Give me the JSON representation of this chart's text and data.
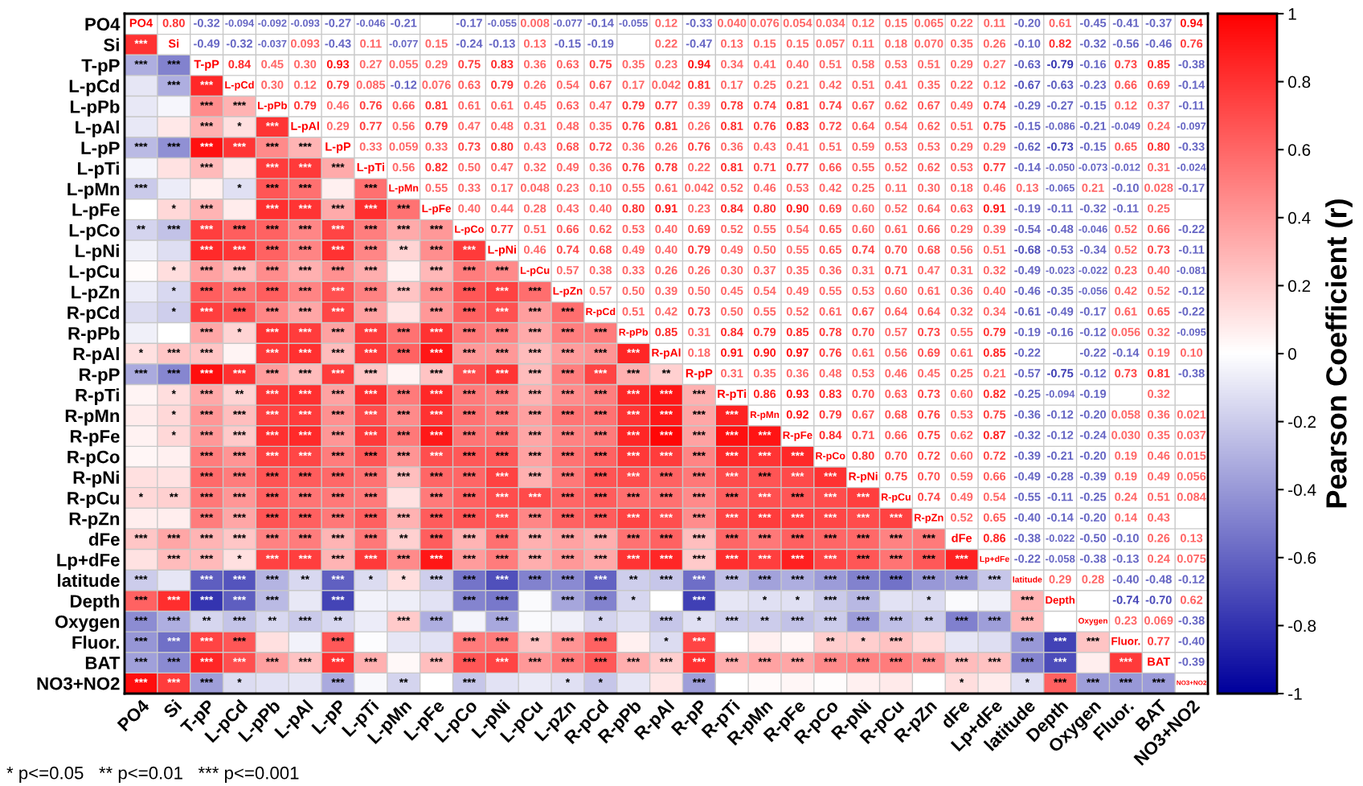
{
  "chart_data": {
    "type": "heatmap",
    "categories": [
      "PO4",
      "Si",
      "T-pP",
      "L-pCd",
      "L-pPb",
      "L-pAl",
      "L-pP",
      "L-pTi",
      "L-pMn",
      "L-pFe",
      "L-pCo",
      "L-pNi",
      "L-pCu",
      "L-pZn",
      "R-pCd",
      "R-pPb",
      "R-pAl",
      "R-pP",
      "R-pTi",
      "R-pMn",
      "R-pFe",
      "R-pCo",
      "R-pNi",
      "R-pCu",
      "R-pZn",
      "dFe",
      "Lp+dFe",
      "latitude",
      "Depth",
      "Oxygen",
      "Fluor.",
      "BAT",
      "NO3+NO2"
    ],
    "y_categories": [
      "PO4",
      "Si",
      "T-pP",
      "L-pCd",
      "L-pPb",
      "L-pAl",
      "L-pP",
      "L-pTi",
      "L-pMn",
      "L-pFe",
      "L-pCo",
      "L-pNi",
      "L-pCu",
      "L-pZn",
      "R-pCd",
      "R-pPb",
      "R-pAl",
      "R-pP",
      "R-pTi",
      "R-pMn",
      "R-pFe",
      "R-pCo",
      "R-pNi",
      "R-pCu",
      "R-pZn",
      "dFe",
      "Lp+dFe",
      "latitude",
      "Depth",
      "Oxygen",
      "Fluor.",
      "BAT",
      "NO3+NO2"
    ],
    "cells": [
      [
        null,
        null,
        null,
        null,
        null,
        null,
        null,
        null,
        null,
        null,
        null,
        null,
        null,
        null,
        null,
        null,
        null,
        null,
        null,
        null,
        null,
        null,
        null,
        null,
        null,
        null,
        null,
        null,
        null,
        null,
        null,
        null,
        null
      ],
      [
        0.8,
        null,
        null,
        null,
        null,
        null,
        null,
        null,
        null,
        null,
        null,
        null,
        null,
        null,
        null,
        null,
        null,
        null,
        null,
        null,
        null,
        null,
        null,
        null,
        null,
        null,
        null,
        null,
        null,
        null,
        null,
        null,
        null
      ],
      [
        -0.32,
        -0.49,
        null,
        null,
        null,
        null,
        null,
        null,
        null,
        null,
        null,
        null,
        null,
        null,
        null,
        null,
        null,
        null,
        null,
        null,
        null,
        null,
        null,
        null,
        null,
        null,
        null,
        null,
        null,
        null,
        null,
        null,
        null
      ],
      [
        -0.094,
        -0.32,
        0.84,
        null,
        null,
        null,
        null,
        null,
        null,
        null,
        null,
        null,
        null,
        null,
        null,
        null,
        null,
        null,
        null,
        null,
        null,
        null,
        null,
        null,
        null,
        null,
        null,
        null,
        null,
        null,
        null,
        null,
        null
      ],
      [
        -0.092,
        -0.037,
        0.45,
        0.3,
        null,
        null,
        null,
        null,
        null,
        null,
        null,
        null,
        null,
        null,
        null,
        null,
        null,
        null,
        null,
        null,
        null,
        null,
        null,
        null,
        null,
        null,
        null,
        null,
        null,
        null,
        null,
        null,
        null
      ],
      [
        -0.093,
        0.093,
        0.3,
        0.12,
        0.79,
        null,
        null,
        null,
        null,
        null,
        null,
        null,
        null,
        null,
        null,
        null,
        null,
        null,
        null,
        null,
        null,
        null,
        null,
        null,
        null,
        null,
        null,
        null,
        null,
        null,
        null,
        null,
        null
      ],
      [
        -0.27,
        -0.43,
        0.93,
        0.79,
        0.46,
        0.29,
        null,
        null,
        null,
        null,
        null,
        null,
        null,
        null,
        null,
        null,
        null,
        null,
        null,
        null,
        null,
        null,
        null,
        null,
        null,
        null,
        null,
        null,
        null,
        null,
        null,
        null,
        null
      ],
      [
        -0.046,
        0.11,
        0.27,
        0.085,
        0.76,
        0.77,
        0.33,
        null,
        null,
        null,
        null,
        null,
        null,
        null,
        null,
        null,
        null,
        null,
        null,
        null,
        null,
        null,
        null,
        null,
        null,
        null,
        null,
        null,
        null,
        null,
        null,
        null,
        null
      ],
      [
        -0.21,
        -0.077,
        0.055,
        -0.12,
        0.66,
        0.56,
        0.059,
        0.56,
        null,
        null,
        null,
        null,
        null,
        null,
        null,
        null,
        null,
        null,
        null,
        null,
        null,
        null,
        null,
        null,
        null,
        null,
        null,
        null,
        null,
        null,
        null,
        null,
        null
      ],
      [
        null,
        0.15,
        0.29,
        0.076,
        0.81,
        0.79,
        0.33,
        0.82,
        0.55,
        null,
        null,
        null,
        null,
        null,
        null,
        null,
        null,
        null,
        null,
        null,
        null,
        null,
        null,
        null,
        null,
        null,
        null,
        null,
        null,
        null,
        null,
        null,
        null
      ],
      [
        -0.17,
        -0.24,
        0.75,
        0.63,
        0.61,
        0.47,
        0.73,
        0.5,
        0.33,
        0.4,
        null,
        null,
        null,
        null,
        null,
        null,
        null,
        null,
        null,
        null,
        null,
        null,
        null,
        null,
        null,
        null,
        null,
        null,
        null,
        null,
        null,
        null,
        null
      ],
      [
        -0.055,
        -0.13,
        0.83,
        0.79,
        0.61,
        0.48,
        0.8,
        0.47,
        0.17,
        0.44,
        0.77,
        null,
        null,
        null,
        null,
        null,
        null,
        null,
        null,
        null,
        null,
        null,
        null,
        null,
        null,
        null,
        null,
        null,
        null,
        null,
        null,
        null,
        null
      ],
      [
        0.008,
        0.13,
        0.36,
        0.26,
        0.45,
        0.31,
        0.43,
        0.32,
        0.048,
        0.28,
        0.51,
        0.46,
        null,
        null,
        null,
        null,
        null,
        null,
        null,
        null,
        null,
        null,
        null,
        null,
        null,
        null,
        null,
        null,
        null,
        null,
        null,
        null,
        null
      ],
      [
        -0.077,
        -0.15,
        0.63,
        0.54,
        0.63,
        0.48,
        0.68,
        0.49,
        0.23,
        0.43,
        0.66,
        0.74,
        0.57,
        null,
        null,
        null,
        null,
        null,
        null,
        null,
        null,
        null,
        null,
        null,
        null,
        null,
        null,
        null,
        null,
        null,
        null,
        null,
        null
      ],
      [
        -0.14,
        -0.19,
        0.75,
        0.67,
        0.47,
        0.35,
        0.72,
        0.36,
        0.1,
        0.4,
        0.62,
        0.68,
        0.38,
        0.57,
        null,
        null,
        null,
        null,
        null,
        null,
        null,
        null,
        null,
        null,
        null,
        null,
        null,
        null,
        null,
        null,
        null,
        null,
        null
      ],
      [
        -0.055,
        null,
        0.35,
        0.17,
        0.79,
        0.76,
        0.36,
        0.76,
        0.55,
        0.8,
        0.53,
        0.49,
        0.33,
        0.5,
        0.51,
        null,
        null,
        null,
        null,
        null,
        null,
        null,
        null,
        null,
        null,
        null,
        null,
        null,
        null,
        null,
        null,
        null,
        null
      ],
      [
        0.12,
        0.22,
        0.23,
        0.042,
        0.77,
        0.81,
        0.26,
        0.78,
        0.61,
        0.91,
        0.4,
        0.4,
        0.26,
        0.39,
        0.42,
        0.85,
        null,
        null,
        null,
        null,
        null,
        null,
        null,
        null,
        null,
        null,
        null,
        null,
        null,
        null,
        null,
        null,
        null
      ],
      [
        -0.33,
        -0.47,
        0.94,
        0.81,
        0.39,
        0.26,
        0.76,
        0.22,
        0.042,
        0.23,
        0.69,
        0.79,
        0.26,
        0.5,
        0.73,
        0.31,
        0.18,
        null,
        null,
        null,
        null,
        null,
        null,
        null,
        null,
        null,
        null,
        null,
        null,
        null,
        null,
        null,
        null
      ],
      [
        0.04,
        0.13,
        0.34,
        0.17,
        0.78,
        0.81,
        0.36,
        0.81,
        0.52,
        0.84,
        0.52,
        0.49,
        0.3,
        0.45,
        0.5,
        0.84,
        0.91,
        0.31,
        null,
        null,
        null,
        null,
        null,
        null,
        null,
        null,
        null,
        null,
        null,
        null,
        null,
        null,
        null
      ],
      [
        0.076,
        0.15,
        0.41,
        0.25,
        0.74,
        0.76,
        0.43,
        0.71,
        0.46,
        0.8,
        0.55,
        0.5,
        0.37,
        0.54,
        0.55,
        0.79,
        0.9,
        0.35,
        0.86,
        null,
        null,
        null,
        null,
        null,
        null,
        null,
        null,
        null,
        null,
        null,
        null,
        null,
        null
      ],
      [
        0.054,
        0.15,
        0.4,
        0.21,
        0.81,
        0.83,
        0.41,
        0.77,
        0.53,
        0.9,
        0.54,
        0.55,
        0.35,
        0.49,
        0.52,
        0.85,
        0.97,
        0.36,
        0.93,
        0.92,
        null,
        null,
        null,
        null,
        null,
        null,
        null,
        null,
        null,
        null,
        null,
        null,
        null
      ],
      [
        0.034,
        0.057,
        0.51,
        0.42,
        0.74,
        0.72,
        0.51,
        0.66,
        0.42,
        0.69,
        0.65,
        0.65,
        0.36,
        0.55,
        0.61,
        0.78,
        0.76,
        0.48,
        0.83,
        0.79,
        0.84,
        null,
        null,
        null,
        null,
        null,
        null,
        null,
        null,
        null,
        null,
        null,
        null
      ],
      [
        0.12,
        0.11,
        0.58,
        0.51,
        0.67,
        0.64,
        0.59,
        0.55,
        0.25,
        0.6,
        0.6,
        0.74,
        0.31,
        0.53,
        0.67,
        0.7,
        0.61,
        0.53,
        0.7,
        0.67,
        0.71,
        0.8,
        null,
        null,
        null,
        null,
        null,
        null,
        null,
        null,
        null,
        null,
        null
      ],
      [
        0.15,
        0.18,
        0.53,
        0.41,
        0.62,
        0.54,
        0.53,
        0.52,
        0.11,
        0.52,
        0.61,
        0.7,
        0.71,
        0.6,
        0.64,
        0.57,
        0.56,
        0.46,
        0.63,
        0.68,
        0.66,
        0.7,
        0.75,
        null,
        null,
        null,
        null,
        null,
        null,
        null,
        null,
        null,
        null
      ],
      [
        0.065,
        0.07,
        0.51,
        0.35,
        0.67,
        0.62,
        0.53,
        0.62,
        0.3,
        0.64,
        0.66,
        0.68,
        0.47,
        0.61,
        0.64,
        0.73,
        0.69,
        0.45,
        0.73,
        0.76,
        0.75,
        0.72,
        0.7,
        0.74,
        null,
        null,
        null,
        null,
        null,
        null,
        null,
        null,
        null
      ],
      [
        0.22,
        0.35,
        0.29,
        0.22,
        0.49,
        0.51,
        0.29,
        0.53,
        0.18,
        0.63,
        0.29,
        0.56,
        0.31,
        0.36,
        0.32,
        0.55,
        0.61,
        0.25,
        0.6,
        0.53,
        0.62,
        0.6,
        0.59,
        0.49,
        0.52,
        null,
        null,
        null,
        null,
        null,
        null,
        null,
        null
      ],
      [
        0.11,
        0.26,
        0.27,
        0.12,
        0.74,
        0.75,
        0.29,
        0.77,
        0.46,
        0.91,
        0.39,
        0.51,
        0.32,
        0.4,
        0.34,
        0.79,
        0.85,
        0.21,
        0.82,
        0.75,
        0.87,
        0.72,
        0.66,
        0.54,
        0.65,
        0.86,
        null,
        null,
        null,
        null,
        null,
        null,
        null
      ],
      [
        -0.2,
        -0.1,
        -0.63,
        -0.67,
        -0.29,
        -0.15,
        -0.62,
        -0.14,
        0.13,
        -0.19,
        -0.54,
        -0.68,
        -0.49,
        -0.46,
        -0.61,
        -0.19,
        -0.22,
        -0.57,
        -0.25,
        -0.36,
        -0.32,
        -0.39,
        -0.49,
        -0.55,
        -0.4,
        -0.38,
        -0.22,
        null,
        null,
        null,
        null,
        null,
        null
      ],
      [
        0.61,
        0.82,
        -0.79,
        -0.63,
        -0.27,
        -0.086,
        -0.73,
        -0.05,
        -0.065,
        -0.11,
        -0.48,
        -0.53,
        -0.023,
        -0.35,
        -0.49,
        -0.16,
        null,
        -0.75,
        -0.094,
        -0.12,
        -0.12,
        -0.21,
        -0.28,
        -0.11,
        -0.14,
        -0.022,
        -0.058,
        0.29,
        null,
        null,
        null,
        null,
        null
      ],
      [
        -0.45,
        -0.32,
        -0.16,
        -0.23,
        -0.15,
        -0.21,
        -0.15,
        -0.073,
        0.21,
        -0.32,
        -0.046,
        -0.34,
        -0.022,
        -0.056,
        -0.17,
        -0.12,
        -0.22,
        -0.12,
        -0.19,
        -0.2,
        -0.24,
        -0.2,
        -0.39,
        -0.25,
        -0.2,
        -0.5,
        -0.38,
        0.28,
        null,
        null,
        null,
        null,
        null
      ],
      [
        -0.41,
        -0.56,
        0.73,
        0.66,
        0.12,
        -0.049,
        0.65,
        -0.012,
        -0.1,
        -0.11,
        0.52,
        0.52,
        0.23,
        0.42,
        0.61,
        0.056,
        -0.14,
        0.73,
        null,
        0.058,
        0.03,
        0.19,
        0.19,
        0.24,
        0.14,
        -0.1,
        -0.13,
        -0.4,
        -0.74,
        0.23,
        null,
        null,
        null
      ],
      [
        -0.37,
        -0.46,
        0.85,
        0.69,
        0.37,
        0.24,
        0.8,
        0.31,
        0.028,
        0.25,
        0.66,
        0.73,
        0.4,
        0.52,
        0.65,
        0.32,
        0.19,
        0.81,
        0.32,
        0.36,
        0.35,
        0.46,
        0.49,
        0.51,
        0.43,
        0.26,
        0.24,
        -0.48,
        -0.7,
        0.069,
        0.77,
        null,
        null
      ],
      [
        0.94,
        0.76,
        -0.38,
        -0.14,
        -0.11,
        -0.097,
        -0.33,
        -0.024,
        -0.17,
        null,
        -0.22,
        -0.11,
        -0.081,
        -0.12,
        -0.22,
        -0.095,
        0.1,
        -0.38,
        null,
        0.021,
        0.037,
        0.015,
        0.056,
        0.084,
        null,
        0.13,
        0.075,
        -0.12,
        0.62,
        -0.38,
        -0.4,
        -0.39,
        null
      ]
    ],
    "cell_labels": [
      [
        "PO4",
        "0.80",
        "-0.32",
        "-0.094",
        "-0.092",
        "-0.093",
        "-0.27",
        "-0.046",
        "-0.21",
        null,
        "-0.17",
        "-0.055",
        "0.008",
        "-0.077",
        "-0.14",
        "-0.055",
        "0.12",
        "-0.33",
        "0.040",
        "0.076",
        "0.054",
        "0.034",
        "0.12",
        "0.15",
        "0.065",
        "0.22",
        "0.11",
        "-0.20",
        "0.61",
        "-0.45",
        "-0.41",
        "-0.37",
        "0.94"
      ],
      [
        "***",
        "Si",
        "-0.49",
        "-0.32",
        "-0.037",
        "0.093",
        "-0.43",
        "0.11",
        "-0.077",
        "0.15",
        "-0.24",
        "-0.13",
        "0.13",
        "-0.15",
        "-0.19",
        null,
        "0.22",
        "-0.47",
        "0.13",
        "0.15",
        "0.15",
        "0.057",
        "0.11",
        "0.18",
        "0.070",
        "0.35",
        "0.26",
        "-0.10",
        "0.82",
        "-0.32",
        "-0.56",
        "-0.46",
        "0.76"
      ],
      [
        "***",
        "***",
        "T-pP",
        "0.84",
        "0.45",
        "0.30",
        "0.93",
        "0.27",
        "0.055",
        "0.29",
        "0.75",
        "0.83",
        "0.36",
        "0.63",
        "0.75",
        "0.35",
        "0.23",
        "0.94",
        "0.34",
        "0.41",
        "0.40",
        "0.51",
        "0.58",
        "0.53",
        "0.51",
        "0.29",
        "0.27",
        "-0.63",
        "-0.79",
        "-0.16",
        "0.73",
        "0.85",
        "-0.38"
      ],
      [
        null,
        "***",
        "***",
        "L-pCd",
        "0.30",
        "0.12",
        "0.79",
        "0.085",
        "-0.12",
        "0.076",
        "0.63",
        "0.79",
        "0.26",
        "0.54",
        "0.67",
        "0.17",
        "0.042",
        "0.81",
        "0.17",
        "0.25",
        "0.21",
        "0.42",
        "0.51",
        "0.41",
        "0.35",
        "0.22",
        "0.12",
        "-0.67",
        "-0.63",
        "-0.23",
        "0.66",
        "0.69",
        "-0.14"
      ],
      [
        null,
        null,
        "***",
        "***",
        "L-pPb",
        "0.79",
        "0.46",
        "0.76",
        "0.66",
        "0.81",
        "0.61",
        "0.61",
        "0.45",
        "0.63",
        "0.47",
        "0.79",
        "0.77",
        "0.39",
        "0.78",
        "0.74",
        "0.81",
        "0.74",
        "0.67",
        "0.62",
        "0.67",
        "0.49",
        "0.74",
        "-0.29",
        "-0.27",
        "-0.15",
        "0.12",
        "0.37",
        "-0.11"
      ],
      [
        null,
        null,
        "***",
        "*",
        "***",
        "L-pAl",
        "0.29",
        "0.77",
        "0.56",
        "0.79",
        "0.47",
        "0.48",
        "0.31",
        "0.48",
        "0.35",
        "0.76",
        "0.81",
        "0.26",
        "0.81",
        "0.76",
        "0.83",
        "0.72",
        "0.64",
        "0.54",
        "0.62",
        "0.51",
        "0.75",
        "-0.15",
        "-0.086",
        "-0.21",
        "-0.049",
        "0.24",
        "-0.097"
      ],
      [
        "***",
        "***",
        "***",
        "***",
        "***",
        "***",
        "L-pP",
        "0.33",
        "0.059",
        "0.33",
        "0.73",
        "0.80",
        "0.43",
        "0.68",
        "0.72",
        "0.36",
        "0.26",
        "0.76",
        "0.36",
        "0.43",
        "0.41",
        "0.51",
        "0.59",
        "0.53",
        "0.53",
        "0.29",
        "0.29",
        "-0.62",
        "-0.73",
        "-0.15",
        "0.65",
        "0.80",
        "-0.33"
      ],
      [
        null,
        null,
        "***",
        null,
        "***",
        "***",
        "***",
        "L-pTi",
        "0.56",
        "0.82",
        "0.50",
        "0.47",
        "0.32",
        "0.49",
        "0.36",
        "0.76",
        "0.78",
        "0.22",
        "0.81",
        "0.71",
        "0.77",
        "0.66",
        "0.55",
        "0.52",
        "0.62",
        "0.53",
        "0.77",
        "-0.14",
        "-0.050",
        "-0.073",
        "-0.012",
        "0.31",
        "-0.024"
      ],
      [
        "***",
        null,
        null,
        "*",
        "***",
        "***",
        null,
        "***",
        "L-pMn",
        "0.55",
        "0.33",
        "0.17",
        "0.048",
        "0.23",
        "0.10",
        "0.55",
        "0.61",
        "0.042",
        "0.52",
        "0.46",
        "0.53",
        "0.42",
        "0.25",
        "0.11",
        "0.30",
        "0.18",
        "0.46",
        "0.13",
        "-0.065",
        "0.21",
        "-0.10",
        "0.028",
        "-0.17"
      ],
      [
        null,
        "*",
        "***",
        null,
        "***",
        "***",
        "***",
        "***",
        "***",
        "L-pFe",
        "0.40",
        "0.44",
        "0.28",
        "0.43",
        "0.40",
        "0.80",
        "0.91",
        "0.23",
        "0.84",
        "0.80",
        "0.90",
        "0.69",
        "0.60",
        "0.52",
        "0.64",
        "0.63",
        "0.91",
        "-0.19",
        "-0.11",
        "-0.32",
        "-0.11",
        "0.25",
        null
      ],
      [
        "**",
        "***",
        "***",
        "***",
        "***",
        "***",
        "***",
        "***",
        "***",
        "***",
        "L-pCo",
        "0.77",
        "0.51",
        "0.66",
        "0.62",
        "0.53",
        "0.40",
        "0.69",
        "0.52",
        "0.55",
        "0.54",
        "0.65",
        "0.60",
        "0.61",
        "0.66",
        "0.29",
        "0.39",
        "-0.54",
        "-0.48",
        "-0.046",
        "0.52",
        "0.66",
        "-0.22"
      ],
      [
        null,
        null,
        "***",
        "***",
        "***",
        "***",
        "***",
        "***",
        "**",
        "***",
        "***",
        "L-pNi",
        "0.46",
        "0.74",
        "0.68",
        "0.49",
        "0.40",
        "0.79",
        "0.49",
        "0.50",
        "0.55",
        "0.65",
        "0.74",
        "0.70",
        "0.68",
        "0.56",
        "0.51",
        "-0.68",
        "-0.53",
        "-0.34",
        "0.52",
        "0.73",
        "-0.11"
      ],
      [
        null,
        "*",
        "***",
        "***",
        "***",
        "***",
        "***",
        "***",
        null,
        "***",
        "***",
        "***",
        "L-pCu",
        "0.57",
        "0.38",
        "0.33",
        "0.26",
        "0.26",
        "0.30",
        "0.37",
        "0.35",
        "0.36",
        "0.31",
        "0.71",
        "0.47",
        "0.31",
        "0.32",
        "-0.49",
        "-0.023",
        "-0.022",
        "0.23",
        "0.40",
        "-0.081"
      ],
      [
        null,
        "*",
        "***",
        "***",
        "***",
        "***",
        "***",
        "***",
        "***",
        "***",
        "***",
        "***",
        "***",
        "L-pZn",
        "0.57",
        "0.50",
        "0.39",
        "0.50",
        "0.45",
        "0.54",
        "0.49",
        "0.55",
        "0.53",
        "0.60",
        "0.61",
        "0.36",
        "0.40",
        "-0.46",
        "-0.35",
        "-0.056",
        "0.42",
        "0.52",
        "-0.12"
      ],
      [
        null,
        "*",
        "***",
        "***",
        "***",
        "***",
        "***",
        "***",
        null,
        "***",
        "***",
        "***",
        "***",
        "***",
        "R-pCd",
        "0.51",
        "0.42",
        "0.73",
        "0.50",
        "0.55",
        "0.52",
        "0.61",
        "0.67",
        "0.64",
        "0.64",
        "0.32",
        "0.34",
        "-0.61",
        "-0.49",
        "-0.17",
        "0.61",
        "0.65",
        "-0.22"
      ],
      [
        null,
        null,
        "***",
        "*",
        "***",
        "***",
        "***",
        "***",
        "***",
        "***",
        "***",
        "***",
        "***",
        "***",
        "***",
        "R-pPb",
        "0.85",
        "0.31",
        "0.84",
        "0.79",
        "0.85",
        "0.78",
        "0.70",
        "0.57",
        "0.73",
        "0.55",
        "0.79",
        "-0.19",
        "-0.16",
        "-0.12",
        "0.056",
        "0.32",
        "-0.095"
      ],
      [
        "*",
        "***",
        "***",
        null,
        "***",
        "***",
        "***",
        "***",
        "***",
        "***",
        "***",
        "***",
        "***",
        "***",
        "***",
        "***",
        "R-pAl",
        "0.18",
        "0.91",
        "0.90",
        "0.97",
        "0.76",
        "0.61",
        "0.56",
        "0.69",
        "0.61",
        "0.85",
        "-0.22",
        null,
        "-0.22",
        "-0.14",
        "0.19",
        "0.10"
      ],
      [
        "***",
        "***",
        "***",
        "***",
        "***",
        "***",
        "***",
        "***",
        null,
        "***",
        "***",
        "***",
        "***",
        "***",
        "***",
        "***",
        "**",
        "R-pP",
        "0.31",
        "0.35",
        "0.36",
        "0.48",
        "0.53",
        "0.46",
        "0.45",
        "0.25",
        "0.21",
        "-0.57",
        "-0.75",
        "-0.12",
        "0.73",
        "0.81",
        "-0.38"
      ],
      [
        null,
        "*",
        "***",
        "**",
        "***",
        "***",
        "***",
        "***",
        "***",
        "***",
        "***",
        "***",
        "***",
        "***",
        "***",
        "***",
        "***",
        "***",
        "R-pTi",
        "0.86",
        "0.93",
        "0.83",
        "0.70",
        "0.63",
        "0.73",
        "0.60",
        "0.82",
        "-0.25",
        "-0.094",
        "-0.19",
        null,
        "0.32",
        null
      ],
      [
        null,
        "*",
        "***",
        "***",
        "***",
        "***",
        "***",
        "***",
        "***",
        "***",
        "***",
        "***",
        "***",
        "***",
        "***",
        "***",
        "***",
        "***",
        "***",
        "R-pMn",
        "0.92",
        "0.79",
        "0.67",
        "0.68",
        "0.76",
        "0.53",
        "0.75",
        "-0.36",
        "-0.12",
        "-0.20",
        "0.058",
        "0.36",
        "0.021"
      ],
      [
        null,
        "*",
        "***",
        "***",
        "***",
        "***",
        "***",
        "***",
        "***",
        "***",
        "***",
        "***",
        "***",
        "***",
        "***",
        "***",
        "***",
        "***",
        "***",
        "***",
        "R-pFe",
        "0.84",
        "0.71",
        "0.66",
        "0.75",
        "0.62",
        "0.87",
        "-0.32",
        "-0.12",
        "-0.24",
        "0.030",
        "0.35",
        "0.037"
      ],
      [
        null,
        null,
        "***",
        "***",
        "***",
        "***",
        "***",
        "***",
        "***",
        "***",
        "***",
        "***",
        "***",
        "***",
        "***",
        "***",
        "***",
        "***",
        "***",
        "***",
        "***",
        "R-pCo",
        "0.80",
        "0.70",
        "0.72",
        "0.60",
        "0.72",
        "-0.39",
        "-0.21",
        "-0.20",
        "0.19",
        "0.46",
        "0.015"
      ],
      [
        null,
        null,
        "***",
        "***",
        "***",
        "***",
        "***",
        "***",
        "***",
        "***",
        "***",
        "***",
        "***",
        "***",
        "***",
        "***",
        "***",
        "***",
        "***",
        "***",
        "***",
        "***",
        "R-pNi",
        "0.75",
        "0.70",
        "0.59",
        "0.66",
        "-0.49",
        "-0.28",
        "-0.39",
        "0.19",
        "0.49",
        "0.056"
      ],
      [
        "*",
        "**",
        "***",
        "***",
        "***",
        "***",
        "***",
        "***",
        null,
        "***",
        "***",
        "***",
        "***",
        "***",
        "***",
        "***",
        "***",
        "***",
        "***",
        "***",
        "***",
        "***",
        "***",
        "R-pCu",
        "0.74",
        "0.49",
        "0.54",
        "-0.55",
        "-0.11",
        "-0.25",
        "0.24",
        "0.51",
        "0.084"
      ],
      [
        null,
        null,
        "***",
        "***",
        "***",
        "***",
        "***",
        "***",
        "***",
        "***",
        "***",
        "***",
        "***",
        "***",
        "***",
        "***",
        "***",
        "***",
        "***",
        "***",
        "***",
        "***",
        "***",
        "***",
        "R-pZn",
        "0.52",
        "0.65",
        "-0.40",
        "-0.14",
        "-0.20",
        "0.14",
        "0.43",
        null
      ],
      [
        "***",
        "***",
        "***",
        "***",
        "***",
        "***",
        "***",
        "***",
        "**",
        "***",
        "***",
        "***",
        "***",
        "***",
        "***",
        "***",
        "***",
        "***",
        "***",
        "***",
        "***",
        "***",
        "***",
        "***",
        "***",
        "dFe",
        "0.86",
        "-0.38",
        "-0.022",
        "-0.50",
        "-0.10",
        "0.26",
        "0.13"
      ],
      [
        null,
        "***",
        "***",
        "*",
        "***",
        "***",
        "***",
        "***",
        "***",
        "***",
        "***",
        "***",
        "***",
        "***",
        "***",
        "***",
        "***",
        "***",
        "***",
        "***",
        "***",
        "***",
        "***",
        "***",
        "***",
        "***",
        "Lp+dFe",
        "-0.22",
        "-0.058",
        "-0.38",
        "-0.13",
        "0.24",
        "0.075"
      ],
      [
        "***",
        null,
        "***",
        "***",
        "***",
        "**",
        "***",
        "*",
        "*",
        "***",
        "***",
        "***",
        "***",
        "***",
        "***",
        "**",
        "***",
        "***",
        "***",
        "***",
        "***",
        "***",
        "***",
        "***",
        "***",
        "***",
        "***",
        "latitude",
        "0.29",
        "0.28",
        "-0.40",
        "-0.48",
        "-0.12"
      ],
      [
        "***",
        "***",
        "***",
        "***",
        "***",
        null,
        "***",
        null,
        null,
        null,
        "***",
        "***",
        null,
        "***",
        "***",
        "*",
        null,
        "***",
        null,
        "*",
        "*",
        "***",
        "***",
        null,
        "*",
        null,
        null,
        "***",
        "Depth",
        null,
        "-0.74",
        "-0.70",
        "0.62"
      ],
      [
        "***",
        "***",
        "**",
        "***",
        "**",
        "***",
        "**",
        null,
        "***",
        "***",
        null,
        "***",
        null,
        null,
        "*",
        null,
        "***",
        "*",
        "***",
        "**",
        "***",
        "***",
        "***",
        "***",
        "**",
        "***",
        "***",
        "***",
        null,
        "Oxygen",
        "0.23",
        "0.069",
        "-0.38"
      ],
      [
        "***",
        "***",
        "***",
        "***",
        null,
        null,
        "***",
        null,
        null,
        null,
        "***",
        "***",
        "**",
        "***",
        "***",
        null,
        "*",
        "***",
        null,
        null,
        null,
        "**",
        "*",
        "***",
        null,
        null,
        null,
        "***",
        "***",
        "***",
        "Fluor.",
        "0.77",
        "-0.40"
      ],
      [
        "***",
        "***",
        "***",
        "***",
        "***",
        "***",
        "***",
        "***",
        null,
        "***",
        "***",
        "***",
        "***",
        "***",
        "***",
        "***",
        "***",
        "***",
        "***",
        "***",
        "***",
        "***",
        "***",
        "***",
        "***",
        "***",
        "***",
        "***",
        "***",
        null,
        "***",
        "BAT",
        "-0.39"
      ],
      [
        "***",
        "***",
        "***",
        "*",
        null,
        null,
        "***",
        null,
        "**",
        null,
        "***",
        null,
        null,
        "*",
        "*",
        null,
        null,
        "***",
        null,
        null,
        null,
        null,
        null,
        null,
        null,
        "*",
        null,
        "*",
        "***",
        "***",
        "***",
        "***",
        "NO3+NO2"
      ]
    ],
    "clim": [
      -1,
      1
    ],
    "cticks": [
      -1,
      -0.8,
      -0.6,
      -0.4,
      -0.2,
      0,
      0.2,
      0.4,
      0.6,
      0.8,
      1
    ],
    "clabel": "Pearson Coefficient (r)",
    "grid": true,
    "annotations": [
      "* p<=0.05   ** p<=0.01   *** p<=0.001"
    ]
  }
}
